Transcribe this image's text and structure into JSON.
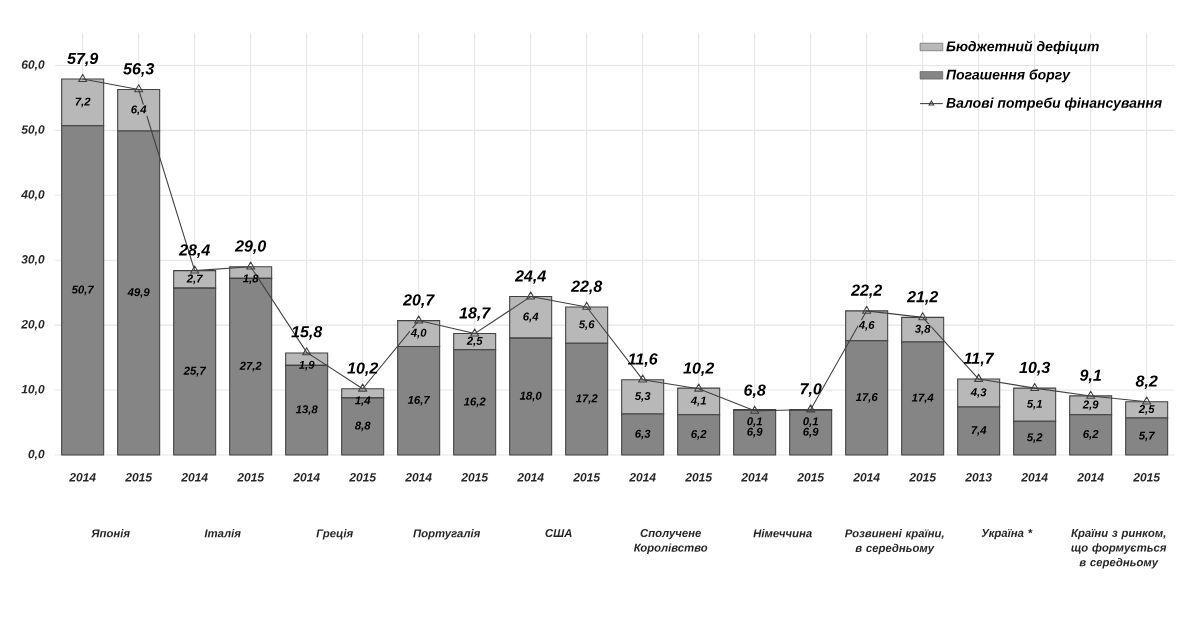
{
  "chart_data": {
    "type": "bar",
    "stacked": true,
    "categories": [
      "2014",
      "2015",
      "2014",
      "2015",
      "2014",
      "2015",
      "2014",
      "2015",
      "2014",
      "2015",
      "2014",
      "2015",
      "2014",
      "2015",
      "2014",
      "2015",
      "2013",
      "2014",
      "2014",
      "2015"
    ],
    "series": [
      {
        "name": "Погашення боргу",
        "color": "#858585",
        "values": [
          50.7,
          49.9,
          25.7,
          27.2,
          13.8,
          8.8,
          16.7,
          16.2,
          18.0,
          17.2,
          6.3,
          6.2,
          6.9,
          6.9,
          17.6,
          17.4,
          7.4,
          5.2,
          6.2,
          5.7
        ],
        "value_labels": [
          "50,7",
          "49,9",
          "25,7",
          "27,2",
          "13,8",
          "8,8",
          "16,7",
          "16,2",
          "18,0",
          "17,2",
          "6,3",
          "6,2",
          "6,9",
          "6,9",
          "17,6",
          "17,4",
          "7,4",
          "5,2",
          "6,2",
          "5,7"
        ]
      },
      {
        "name": "Бюджетний дефіцит",
        "color": "#b8b8b8",
        "values": [
          7.2,
          6.4,
          2.7,
          1.8,
          1.9,
          1.4,
          4.0,
          2.5,
          6.4,
          5.6,
          5.3,
          4.1,
          0.1,
          0.1,
          4.6,
          3.8,
          4.3,
          5.1,
          2.9,
          2.5
        ],
        "value_labels": [
          "7,2",
          "6,4",
          "2,7",
          "1,8",
          "1,9",
          "1,4",
          "4,0",
          "2,5",
          "6,4",
          "5,6",
          "5,3",
          "4,1",
          "0,1",
          "0,1",
          "4,6",
          "3,8",
          "4,3",
          "5,1",
          "2,9",
          "2,5"
        ]
      },
      {
        "name": "Валові потреби фінансування",
        "type": "line",
        "color": "#404040",
        "marker": "triangle",
        "values": [
          57.9,
          56.3,
          28.4,
          29.0,
          15.8,
          10.2,
          20.7,
          18.7,
          24.4,
          22.8,
          11.6,
          10.2,
          6.8,
          7.0,
          22.2,
          21.2,
          11.7,
          10.3,
          9.1,
          8.2
        ],
        "value_labels": [
          "57,9",
          "56,3",
          "28,4",
          "29,0",
          "15,8",
          "10,2",
          "20,7",
          "18,7",
          "24,4",
          "22,8",
          "11,6",
          "10,2",
          "6,8",
          "7,0",
          "22,2",
          "21,2",
          "11,7",
          "10,3",
          "9,1",
          "8,2"
        ]
      }
    ],
    "annotations": [
      "Японія",
      "Італія",
      "Греція",
      "Португалія",
      "США",
      "Сполучене Королівство",
      "Німеччина",
      "Розвинені країни, в середньому",
      "Україна *",
      "Країни з ринком, що формується в середньому"
    ],
    "ylim": [
      0,
      65
    ],
    "yticks": [
      {
        "value": 0,
        "label": "0,0"
      },
      {
        "value": 10,
        "label": "10,0"
      },
      {
        "value": 20,
        "label": "20,0"
      },
      {
        "value": 30,
        "label": "30,0"
      },
      {
        "value": 40,
        "label": "40,0"
      },
      {
        "value": 50,
        "label": "50,0"
      },
      {
        "value": 60,
        "label": "60,0"
      }
    ],
    "grid": true,
    "legend": "top right"
  }
}
